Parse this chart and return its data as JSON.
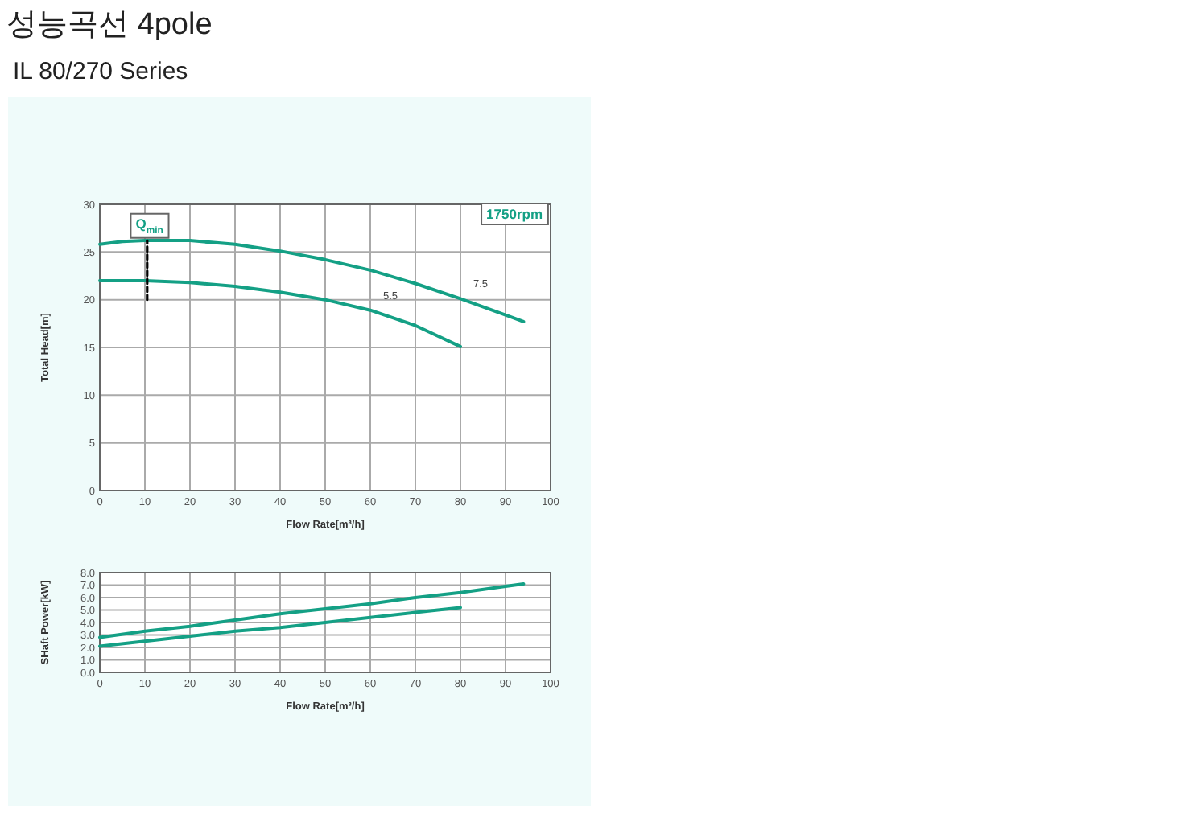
{
  "chart_data": [
    {
      "type": "line",
      "title": "성능곡선 4pole",
      "subtitle": "IL 80/270 Series",
      "xlabel": "Flow Rate[m³/h]",
      "ylabel": "Total Head[m]",
      "xlim": [
        0,
        100
      ],
      "xticks": [
        0,
        10,
        20,
        30,
        40,
        50,
        60,
        70,
        80,
        90,
        100
      ],
      "ylim": [
        0,
        30
      ],
      "yticks": [
        0,
        5,
        10,
        15,
        20,
        25,
        30
      ],
      "grid": true,
      "series": [
        {
          "name": "7.5",
          "color": "#14a085",
          "x": [
            0,
            5,
            10,
            20,
            30,
            40,
            50,
            60,
            70,
            80,
            90,
            94
          ],
          "values": [
            25.8,
            26.1,
            26.2,
            26.2,
            25.8,
            25.1,
            24.2,
            23.1,
            21.7,
            20.1,
            18.4,
            17.7
          ]
        },
        {
          "name": "5.5",
          "color": "#14a085",
          "x": [
            0,
            10,
            20,
            30,
            40,
            50,
            60,
            70,
            80
          ],
          "values": [
            22,
            22,
            21.8,
            21.4,
            20.8,
            20.0,
            18.9,
            17.3,
            15.1
          ]
        },
        {
          "color": "#000000",
          "line_style": "dashed",
          "x": [
            10.5,
            10.5
          ],
          "values": [
            20,
            26.2
          ]
        }
      ],
      "annotations": [
        "1750rpm",
        {
          "text": "Q$_{min}$",
          "x": 11,
          "y": 28
        }
      ]
    },
    {
      "type": "line",
      "xlabel": "Flow Rate[m³/h]",
      "ylabel": "SHaft Power[kW]",
      "xlim": [
        0,
        100
      ],
      "xticks": [
        0,
        10,
        20,
        30,
        40,
        50,
        60,
        70,
        80,
        90,
        100
      ],
      "ylim": [
        0,
        8
      ],
      "yticks": [
        {
          "value": 0,
          "label": "0.0"
        },
        {
          "value": 1,
          "label": "1.0"
        },
        {
          "value": 2,
          "label": "2.0"
        },
        {
          "value": 3,
          "label": "3.0"
        },
        {
          "value": 4,
          "label": "4.0"
        },
        {
          "value": 5,
          "label": "5.0"
        },
        {
          "value": 6,
          "label": "6.0"
        },
        {
          "value": 7,
          "label": "7.0"
        },
        {
          "value": 8,
          "label": "8.0"
        }
      ],
      "grid": true,
      "series": [
        {
          "color": "#14a085",
          "x": [
            0,
            10,
            20,
            30,
            40,
            50,
            60,
            70,
            80,
            90,
            94
          ],
          "values": [
            2.8,
            3.3,
            3.7,
            4.2,
            4.7,
            5.1,
            5.5,
            6.0,
            6.4,
            6.9,
            7.1
          ]
        },
        {
          "color": "#14a085",
          "x": [
            0,
            10,
            20,
            30,
            40,
            50,
            60,
            70,
            80
          ],
          "values": [
            2.1,
            2.5,
            2.9,
            3.3,
            3.6,
            4.0,
            4.4,
            4.8,
            5.2
          ]
        }
      ]
    }
  ]
}
